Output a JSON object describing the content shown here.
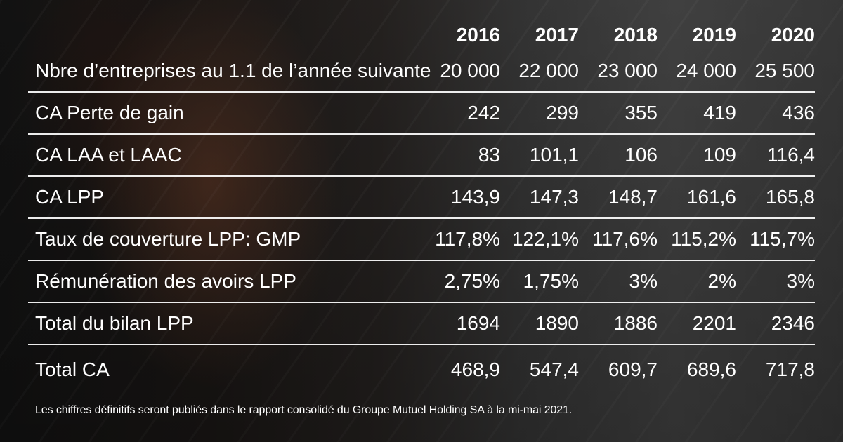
{
  "table": {
    "years": [
      "2016",
      "2017",
      "2018",
      "2019",
      "2020"
    ],
    "rows": [
      {
        "label": "Nbre d’entreprises au 1.1 de l’année suivante",
        "values": [
          "20 000",
          "22 000",
          "23 000",
          "24 000",
          "25 500"
        ]
      },
      {
        "label": "CA Perte de gain",
        "values": [
          "242",
          "299",
          "355",
          "419",
          "436"
        ]
      },
      {
        "label": "CA LAA et LAAC",
        "values": [
          "83",
          "101,1",
          "106",
          "109",
          "116,4"
        ]
      },
      {
        "label": "CA LPP",
        "values": [
          "143,9",
          "147,3",
          "148,7",
          "161,6",
          "165,8"
        ]
      },
      {
        "label": "Taux de couverture LPP: GMP",
        "values": [
          "117,8%",
          "122,1%",
          "117,6%",
          "115,2%",
          "115,7%"
        ]
      },
      {
        "label": "Rémunération des avoirs LPP",
        "values": [
          "2,75%",
          "1,75%",
          "3%",
          "2%",
          "3%"
        ]
      },
      {
        "label": "Total du bilan LPP",
        "values": [
          "1694",
          "1890",
          "1886",
          "2201",
          "2346"
        ]
      },
      {
        "label": "Total CA",
        "values": [
          "468,9",
          "547,4",
          "609,7",
          "689,6",
          "717,8"
        ]
      }
    ]
  },
  "footnote": "Les chiffres définitifs seront publiés dans le rapport consolidé du Groupe Mutuel Holding SA à la mi-mai 2021."
}
